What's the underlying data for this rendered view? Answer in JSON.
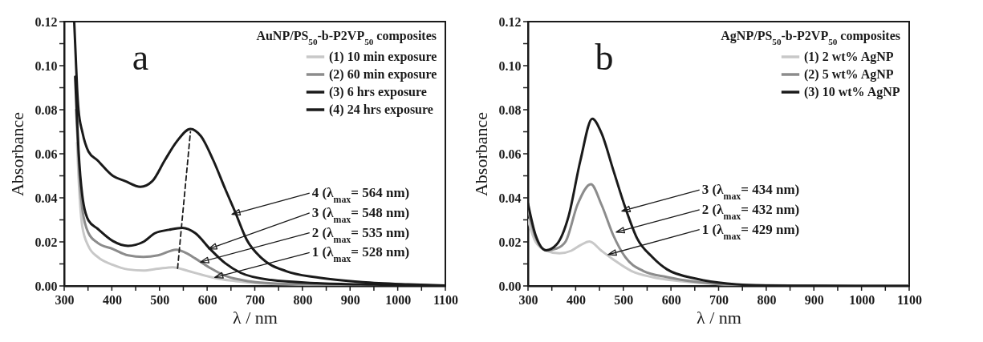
{
  "chart_data": [
    {
      "type": "line",
      "title": "a",
      "xlabel": "λ / nm",
      "ylabel": "Absorbance",
      "legend_title": "AuNP/PS$_{50}$-b-P2VP$_{50}$ composites",
      "legend": "top right",
      "xlim": [
        300,
        1100
      ],
      "xticks": [
        300,
        {
          "value": 350,
          "label": null
        },
        400,
        {
          "value": 450,
          "label": null
        },
        500,
        {
          "value": 550,
          "label": null
        },
        600,
        {
          "value": 650,
          "label": null
        },
        700,
        {
          "value": 750,
          "label": null
        },
        800,
        {
          "value": 850,
          "label": null
        },
        900,
        {
          "value": 950,
          "label": null
        },
        1000,
        {
          "value": 1050,
          "label": null
        },
        1100
      ],
      "ylim": [
        0,
        0.12
      ],
      "yticks": [
        {
          "value": 0,
          "label": "0.00"
        },
        {
          "value": 0.01,
          "label": null
        },
        {
          "value": 0.02,
          "label": "0.02"
        },
        {
          "value": 0.03,
          "label": null
        },
        {
          "value": 0.04,
          "label": "0.04"
        },
        {
          "value": 0.05,
          "label": null
        },
        {
          "value": 0.06,
          "label": "0.06"
        },
        {
          "value": 0.07,
          "label": null
        },
        {
          "value": 0.08,
          "label": "0.08"
        },
        {
          "value": 0.09,
          "label": null
        },
        {
          "value": 0.1,
          "label": "0.10"
        },
        {
          "value": 0.11,
          "label": null
        },
        {
          "value": 0.12,
          "label": "0.12"
        }
      ],
      "series": [
        {
          "name": "(1) 10 min exposure",
          "color": "#c8c8c8",
          "x": [
            327,
            330,
            338,
            351,
            370,
            402,
            434,
            466,
            497,
            528,
            560,
            590,
            626,
            660,
            702,
            800,
            900,
            1000,
            1100
          ],
          "values": [
            0.065,
            0.05,
            0.027,
            0.018,
            0.0132,
            0.0096,
            0.0075,
            0.007,
            0.0078,
            0.0085,
            0.0068,
            0.005,
            0.0032,
            0.0022,
            0.0013,
            0.0006,
            0.0003,
            0.0001,
            0
          ]
        },
        {
          "name": "(2) 60 min exposure",
          "color": "#8c8c8c",
          "x": [
            325,
            330,
            338,
            351,
            370,
            402,
            434,
            466,
            497,
            535,
            560,
            575,
            606,
            638,
            670,
            702,
            766,
            850,
            1000,
            1100
          ],
          "values": [
            0.08,
            0.058,
            0.035,
            0.024,
            0.0196,
            0.0168,
            0.0139,
            0.0132,
            0.0139,
            0.0165,
            0.0145,
            0.0125,
            0.0082,
            0.0046,
            0.0028,
            0.0017,
            0.0009,
            0.0005,
            0.0002,
            0
          ]
        },
        {
          "name": "(3) 6 hrs exposure",
          "color": "#1a1a1a",
          "x": [
            323,
            326,
            330,
            338,
            351,
            370,
            402,
            434,
            466,
            491,
            520,
            548,
            575,
            606,
            638,
            670,
            734,
            830,
            950,
            1100
          ],
          "values": [
            0.095,
            0.08,
            0.062,
            0.041,
            0.0297,
            0.026,
            0.0204,
            0.0182,
            0.02,
            0.024,
            0.0255,
            0.0264,
            0.024,
            0.0168,
            0.0103,
            0.006,
            0.0027,
            0.0013,
            0.0006,
            0.0001
          ]
        },
        {
          "name": "(4) 24 hrs exposure",
          "color": "#1a1a1a",
          "x": [
            321,
            324,
            327,
            330,
            338,
            351,
            370,
            402,
            428,
            460,
            485,
            511,
            536,
            565,
            587,
            613,
            638,
            658,
            683,
            715,
            766,
            830,
            926,
            1022,
            1100
          ],
          "values": [
            0.12,
            0.105,
            0.09,
            0.08,
            0.07,
            0.061,
            0.057,
            0.05,
            0.0476,
            0.045,
            0.0476,
            0.057,
            0.0655,
            0.0713,
            0.068,
            0.057,
            0.044,
            0.034,
            0.021,
            0.0125,
            0.0067,
            0.0039,
            0.0017,
            0.0007,
            0.0002
          ]
        },
        {
          "type": "line",
          "line_style": "dashed",
          "color": "#1a1a1a",
          "x": [
            538,
            565
          ],
          "values": [
            0.008,
            0.07
          ]
        }
      ],
      "annotations": [
        {
          "text": "4 (λ$_{max}$= 564 nm)",
          "x": 652,
          "y": 0.0325
        },
        {
          "text": "3 (λ$_{max}$= 548 nm)",
          "x": 603,
          "y": 0.0168
        },
        {
          "text": "2 (λ$_{max}$= 535 nm)",
          "x": 586,
          "y": 0.0108
        },
        {
          "text": "1 (λ$_{max}$= 528 nm)",
          "x": 616,
          "y": 0.0039
        }
      ]
    },
    {
      "type": "line",
      "title": "b",
      "xlabel": "λ / nm",
      "ylabel": "Absorbance",
      "legend_title": "AgNP/PS$_{50}$-b-P2VP$_{50}$ composites",
      "legend": "top right",
      "xlim": [
        300,
        1100
      ],
      "xticks": [
        300,
        {
          "value": 350,
          "label": null
        },
        400,
        {
          "value": 450,
          "label": null
        },
        500,
        {
          "value": 550,
          "label": null
        },
        600,
        {
          "value": 650,
          "label": null
        },
        700,
        {
          "value": 750,
          "label": null
        },
        800,
        {
          "value": 850,
          "label": null
        },
        900,
        {
          "value": 950,
          "label": null
        },
        1000,
        {
          "value": 1050,
          "label": null
        },
        1100
      ],
      "ylim": [
        0,
        0.12
      ],
      "yticks": [
        {
          "value": 0,
          "label": "0.00"
        },
        {
          "value": 0.01,
          "label": null
        },
        {
          "value": 0.02,
          "label": "0.02"
        },
        {
          "value": 0.03,
          "label": null
        },
        {
          "value": 0.04,
          "label": "0.04"
        },
        {
          "value": 0.05,
          "label": null
        },
        {
          "value": 0.06,
          "label": "0.06"
        },
        {
          "value": 0.07,
          "label": null
        },
        {
          "value": 0.08,
          "label": "0.08"
        },
        {
          "value": 0.09,
          "label": null
        },
        {
          "value": 0.1,
          "label": "0.10"
        },
        {
          "value": 0.11,
          "label": null
        },
        {
          "value": 0.12,
          "label": "0.12"
        }
      ],
      "series": [
        {
          "name": "(1) 2 wt% AgNP",
          "color": "#c8c8c8",
          "x": [
            300,
            316,
            338,
            366,
            391,
            410,
            429,
            454,
            479,
            517,
            561,
            624,
            700,
            750,
            900,
            1100
          ],
          "values": [
            0.03,
            0.02,
            0.016,
            0.0148,
            0.016,
            0.0185,
            0.0202,
            0.016,
            0.012,
            0.0068,
            0.004,
            0.0021,
            0.0008,
            0.0004,
            0.0001,
            0
          ]
        },
        {
          "name": "(2) 5 wt% AgNP",
          "color": "#8c8c8c",
          "x": [
            300,
            316,
            338,
            360,
            379,
            404,
            432,
            454,
            479,
            504,
            542,
            592,
            655,
            750,
            900,
            1100
          ],
          "values": [
            0.035,
            0.022,
            0.0162,
            0.017,
            0.0202,
            0.037,
            0.0462,
            0.037,
            0.023,
            0.0131,
            0.0068,
            0.004,
            0.0018,
            0.0004,
            0.0001,
            0
          ]
        },
        {
          "name": "(3) 10 wt% AgNP",
          "color": "#1a1a1a",
          "x": [
            300,
            316,
            338,
            360,
            385,
            410,
            435,
            454,
            479,
            504,
            529,
            561,
            592,
            655,
            718,
            800,
            900,
            1100
          ],
          "values": [
            0.0374,
            0.023,
            0.0162,
            0.0188,
            0.0315,
            0.057,
            0.0759,
            0.0695,
            0.0526,
            0.0357,
            0.0216,
            0.0131,
            0.0075,
            0.0032,
            0.0011,
            0.0002,
            0.0001,
            0
          ]
        }
      ],
      "annotations": [
        {
          "text": "3 (λ$_{max}$= 434 nm)",
          "x": 497,
          "y": 0.034
        },
        {
          "text": "2 (λ$_{max}$= 432 nm)",
          "x": 485,
          "y": 0.0244
        },
        {
          "text": "1 (λ$_{max}$= 429 nm)",
          "x": 468,
          "y": 0.0142
        }
      ]
    }
  ]
}
